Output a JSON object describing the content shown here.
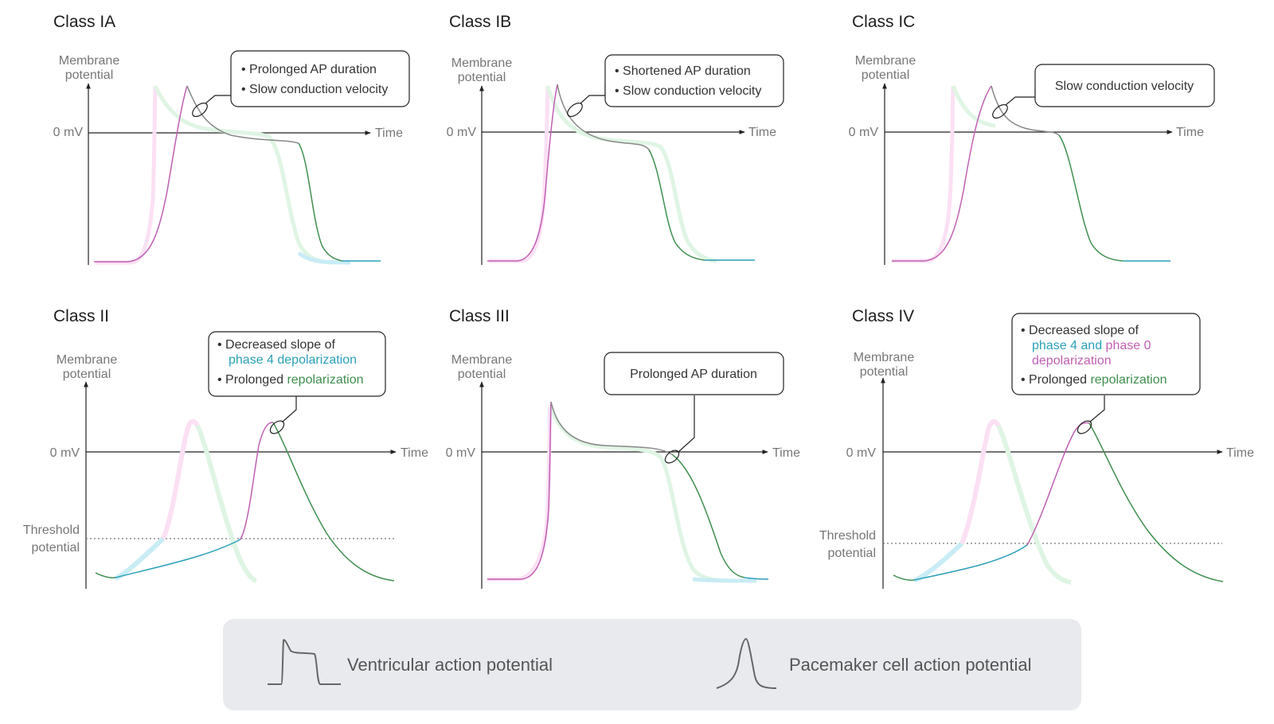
{
  "colors": {
    "teal": "#2aa0b8",
    "pink": "#c060b4",
    "green": "#3f8f4f",
    "gray": "#888888",
    "ghost_teal": "#c8ecf5",
    "ghost_pink": "#fbe0f4",
    "ghost_green": "#dff5e4",
    "legend_bg": "#e9eaee"
  },
  "common": {
    "membrane": "Membrane",
    "potential": "potential",
    "zero": "0 mV",
    "time": "Time",
    "threshold": "Threshold",
    "threshold2": "potential"
  },
  "panels": [
    {
      "title": "Class IA",
      "callout": [
        "Prolonged AP duration",
        "Slow conduction velocity"
      ]
    },
    {
      "title": "Class IB",
      "callout": [
        "Shortened AP duration",
        "Slow conduction velocity"
      ]
    },
    {
      "title": "Class IC",
      "callout": [
        "Slow conduction velocity"
      ]
    },
    {
      "title": "Class II",
      "callout_line1": "Decreased slope of",
      "callout_line2": "phase 4 depolarization",
      "callout_line3_prefix": "Prolonged",
      "callout_line3_color": "repolarization"
    },
    {
      "title": "Class III",
      "callout": [
        "Prolonged AP duration"
      ]
    },
    {
      "title": "Class IV",
      "callout_line1": "Decreased slope of",
      "callout_line2a": "phase 4",
      "callout_line2b": "and",
      "callout_line2c": "phase 0",
      "callout_line2d": "depolarization",
      "callout_line3_prefix": "Prolonged",
      "callout_line3_color": "repolarization"
    }
  ],
  "legend": {
    "ventricular": "Ventricular action potential",
    "pacemaker": "Pacemaker cell action potential"
  }
}
